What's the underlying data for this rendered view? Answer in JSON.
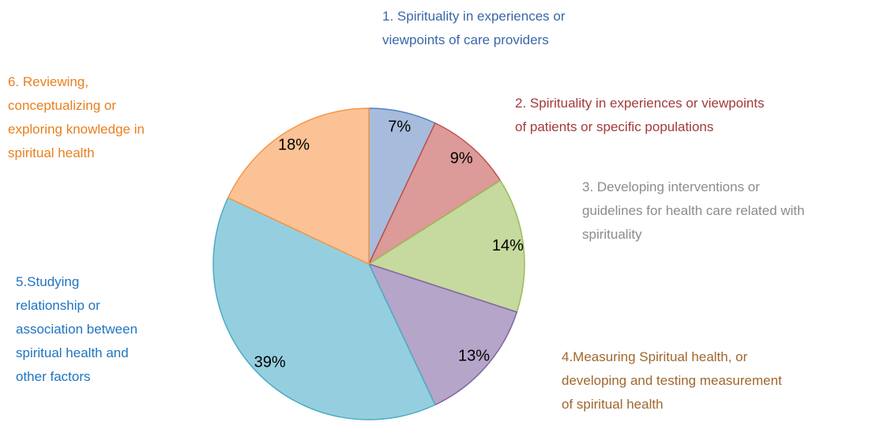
{
  "chart_data": {
    "type": "pie",
    "categories": [
      "1. Spirituality in experiences or\nviewpoints of care providers",
      "2. Spirituality in experiences or viewpoints\nof patients or specific populations",
      "3. Developing interventions or\nguidelines for health care related with\nspirituality",
      "4.Measuring Spiritual health, or\ndeveloping and testing measurement\nof spiritual health",
      "5.Studying\nrelationship or\nassociation between\nspiritual health and\nother factors",
      "6. Reviewing,\nconceptualizing or\nexploring knowledge in\nspiritual health"
    ],
    "values": [
      7,
      9,
      14,
      13,
      39,
      18
    ],
    "value_labels": [
      "7%",
      "9%",
      "14%",
      "13%",
      "39%",
      "18%"
    ],
    "colors": [
      "#a7bcdc",
      "#dc9a98",
      "#c6d99e",
      "#b5a5c9",
      "#95cfdf",
      "#fbc395"
    ],
    "edge_colors": [
      "#4f81bd",
      "#c0504d",
      "#9bbb59",
      "#8064a2",
      "#4bacc6",
      "#f79646"
    ],
    "label_colors": [
      "#3a67a8",
      "#a33a3a",
      "#8c8c8c",
      "#a0672e",
      "#1f74c0",
      "#e8801e"
    ]
  }
}
